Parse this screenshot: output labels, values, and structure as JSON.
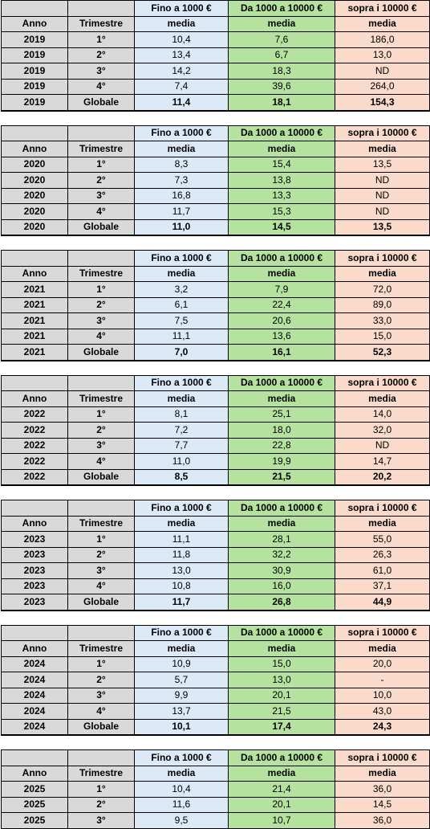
{
  "headers": {
    "anno": "Anno",
    "trimestre": "Trimestre",
    "col1": "Fino a 1000 €",
    "col2": "Da 1000 a 10000 €",
    "col3": "sopra i 10000 €",
    "sub": "media"
  },
  "colors": {
    "label_gray": "#d9d9d9",
    "col1_blue": "#dce9f7",
    "col2_green": "#b5e29e",
    "col3_pink": "#fadbcb"
  },
  "blocks": [
    {
      "year": "2019",
      "rows": [
        {
          "anno": "2019",
          "tri": "1°",
          "v1": "10,4",
          "v2": "7,6",
          "v3": "186,0"
        },
        {
          "anno": "2019",
          "tri": "2°",
          "v1": "13,4",
          "v2": "6,7",
          "v3": "13,0"
        },
        {
          "anno": "2019",
          "tri": "3°",
          "v1": "14,2",
          "v2": "18,3",
          "v3": "ND"
        },
        {
          "anno": "2019",
          "tri": "4°",
          "v1": "7,4",
          "v2": "39,6",
          "v3": "264,0"
        },
        {
          "anno": "2019",
          "tri": "Globale",
          "v1": "11,4",
          "v2": "18,1",
          "v3": "154,3"
        }
      ]
    },
    {
      "year": "2020",
      "rows": [
        {
          "anno": "2020",
          "tri": "1°",
          "v1": "8,3",
          "v2": "15,4",
          "v3": "13,5"
        },
        {
          "anno": "2020",
          "tri": "2°",
          "v1": "7,3",
          "v2": "13,8",
          "v3": "ND"
        },
        {
          "anno": "2020",
          "tri": "3°",
          "v1": "16,8",
          "v2": "13,3",
          "v3": "ND"
        },
        {
          "anno": "2020",
          "tri": "4°",
          "v1": "11,7",
          "v2": "15,3",
          "v3": "ND"
        },
        {
          "anno": "2020",
          "tri": "Globale",
          "v1": "11,0",
          "v2": "14,5",
          "v3": "13,5"
        }
      ]
    },
    {
      "year": "2021",
      "rows": [
        {
          "anno": "2021",
          "tri": "1°",
          "v1": "3,2",
          "v2": "7,9",
          "v3": "72,0"
        },
        {
          "anno": "2021",
          "tri": "2°",
          "v1": "6,1",
          "v2": "22,4",
          "v3": "89,0"
        },
        {
          "anno": "2021",
          "tri": "3°",
          "v1": "7,5",
          "v2": "20,6",
          "v3": "33,0"
        },
        {
          "anno": "2021",
          "tri": "4°",
          "v1": "11,1",
          "v2": "13,6",
          "v3": "15,0"
        },
        {
          "anno": "2021",
          "tri": "Globale",
          "v1": "7,0",
          "v2": "16,1",
          "v3": "52,3"
        }
      ]
    },
    {
      "year": "2022",
      "rows": [
        {
          "anno": "2022",
          "tri": "1°",
          "v1": "8,1",
          "v2": "25,1",
          "v3": "14,0"
        },
        {
          "anno": "2022",
          "tri": "2°",
          "v1": "7,2",
          "v2": "18,0",
          "v3": "32,0"
        },
        {
          "anno": "2022",
          "tri": "3°",
          "v1": "7,7",
          "v2": "22,8",
          "v3": "ND"
        },
        {
          "anno": "2022",
          "tri": "4°",
          "v1": "11,0",
          "v2": "19,9",
          "v3": "14,7"
        },
        {
          "anno": "2022",
          "tri": "Globale",
          "v1": "8,5",
          "v2": "21,5",
          "v3": "20,2"
        }
      ]
    },
    {
      "year": "2023",
      "rows": [
        {
          "anno": "2023",
          "tri": "1°",
          "v1": "11,1",
          "v2": "28,1",
          "v3": "55,0"
        },
        {
          "anno": "2023",
          "tri": "2°",
          "v1": "11,8",
          "v2": "32,2",
          "v3": "26,3"
        },
        {
          "anno": "2023",
          "tri": "3°",
          "v1": "13,0",
          "v2": "30,9",
          "v3": "61,0"
        },
        {
          "anno": "2023",
          "tri": "4°",
          "v1": "10,8",
          "v2": "16,0",
          "v3": "37,1"
        },
        {
          "anno": "2023",
          "tri": "Globale",
          "v1": "11,7",
          "v2": "26,8",
          "v3": "44,9"
        }
      ]
    },
    {
      "year": "2024",
      "rows": [
        {
          "anno": "2024",
          "tri": "1°",
          "v1": "10,9",
          "v2": "15,0",
          "v3": "20,0"
        },
        {
          "anno": "2024",
          "tri": "2°",
          "v1": "5,7",
          "v2": "13,0",
          "v3": "-"
        },
        {
          "anno": "2024",
          "tri": "3°",
          "v1": "9,9",
          "v2": "20,1",
          "v3": "10,0"
        },
        {
          "anno": "2024",
          "tri": "4°",
          "v1": "13,7",
          "v2": "21,5",
          "v3": "43,0"
        },
        {
          "anno": "2024",
          "tri": "Globale",
          "v1": "10,1",
          "v2": "17,4",
          "v3": "24,3"
        }
      ]
    },
    {
      "year": "2025",
      "rows": [
        {
          "anno": "2025",
          "tri": "1°",
          "v1": "10,4",
          "v2": "21,4",
          "v3": "36,0"
        },
        {
          "anno": "2025",
          "tri": "2°",
          "v1": "11,6",
          "v2": "20,1",
          "v3": "14,5"
        },
        {
          "anno": "2025",
          "tri": "3°",
          "v1": "9,5",
          "v2": "10,7",
          "v3": "36,0"
        }
      ]
    }
  ]
}
